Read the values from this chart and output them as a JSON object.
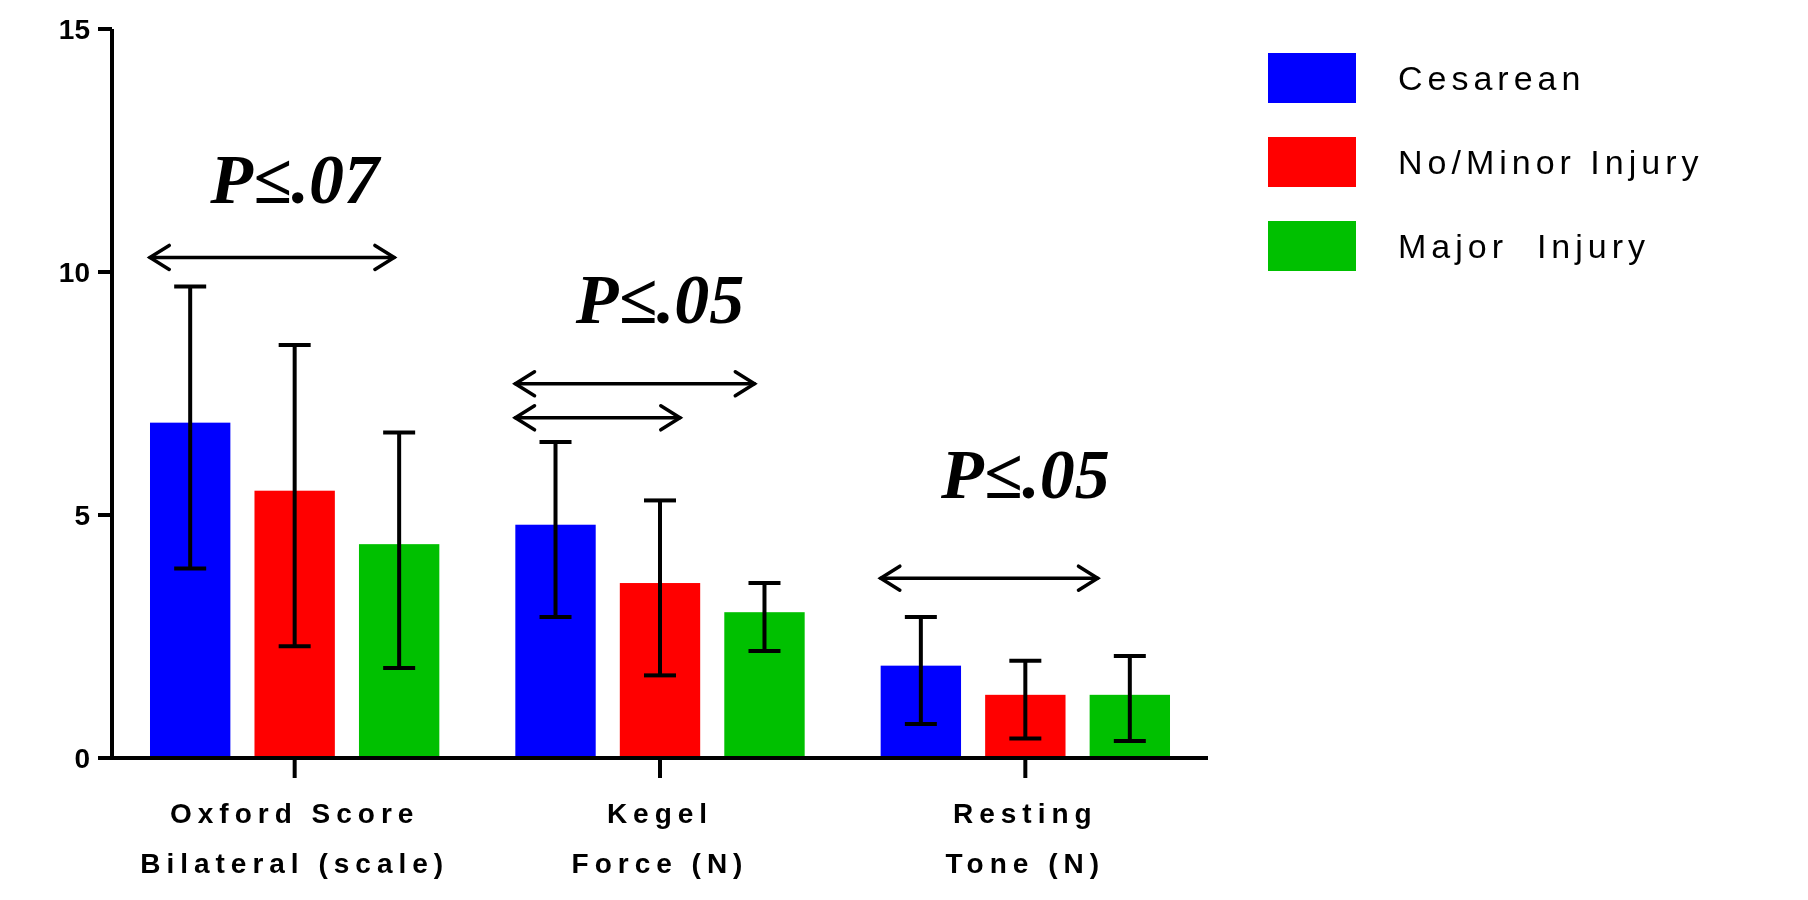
{
  "chart_data": {
    "type": "bar",
    "categories": [
      "Oxford Score Bilateral (scale)",
      "Kegel Force (N)",
      "Resting Tone (N)"
    ],
    "series": [
      {
        "name": "Cesarean",
        "color": "#0000ff",
        "values": [
          6.9,
          4.8,
          1.9
        ],
        "errors": [
          [
            3.9,
            9.7
          ],
          [
            2.9,
            6.5
          ],
          [
            0.7,
            2.9
          ]
        ]
      },
      {
        "name": "No/Minor Injury",
        "color": "#ff0000",
        "values": [
          5.5,
          3.6,
          1.3
        ],
        "errors": [
          [
            2.3,
            8.5
          ],
          [
            1.7,
            5.3
          ],
          [
            0.4,
            2.0
          ]
        ]
      },
      {
        "name": "Major  Injury",
        "color": "#00c000",
        "values": [
          4.4,
          3.0,
          1.3
        ],
        "errors": [
          [
            1.85,
            6.7
          ],
          [
            2.2,
            3.6
          ],
          [
            0.35,
            2.1
          ]
        ]
      }
    ],
    "ylim": [
      0,
      15
    ],
    "yticks": [
      0,
      5,
      10,
      15
    ],
    "grid": false,
    "legend": "top right",
    "annotations": [
      "P≤.07",
      "P≤.05",
      "P≤.05"
    ]
  }
}
